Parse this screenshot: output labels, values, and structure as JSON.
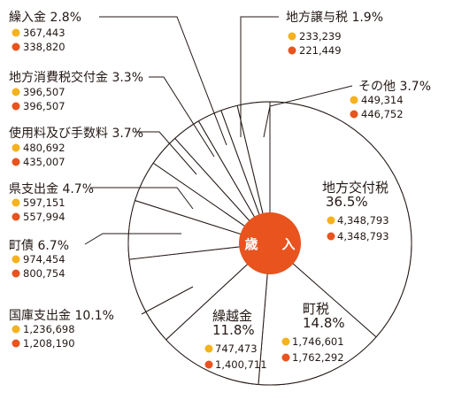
{
  "colors": {
    "current_dot": "#f5b21f",
    "previous_dot": "#e8531e",
    "center": "#e8531e",
    "line": "#231815"
  },
  "chart_data": {
    "type": "pie",
    "title": "",
    "center_label": "歳　入",
    "series_markers": [
      "yellow-dot",
      "orange-dot"
    ],
    "slices": [
      {
        "name": "地方交付税",
        "percent": "36.5%",
        "value_a": "4,348,793",
        "value_b": "4,348,793",
        "pct": 36.5
      },
      {
        "name": "町税",
        "percent": "14.8%",
        "value_a": "1,746,601",
        "value_b": "1,762,292",
        "pct": 14.8
      },
      {
        "name": "繰越金",
        "percent": "11.8%",
        "value_a": "747,473",
        "value_b": "1,400,711",
        "pct": 11.8
      },
      {
        "name": "国庫支出金",
        "percent": "10.1%",
        "value_a": "1,236,698",
        "value_b": "1,208,190",
        "pct": 10.1
      },
      {
        "name": "町債",
        "percent": "6.7%",
        "value_a": "974,454",
        "value_b": "800,754",
        "pct": 6.7
      },
      {
        "name": "県支出金",
        "percent": "4.7%",
        "value_a": "597,151",
        "value_b": "557,994",
        "pct": 4.7
      },
      {
        "name": "使用料及び手数料",
        "percent": "3.7%",
        "value_a": "480,692",
        "value_b": "435,007",
        "pct": 3.7
      },
      {
        "name": "地方消費税交付金",
        "percent": "3.3%",
        "value_a": "396,507",
        "value_b": "396,507",
        "pct": 3.3
      },
      {
        "name": "繰入金",
        "percent": "2.8%",
        "value_a": "367,443",
        "value_b": "338,820",
        "pct": 2.8
      },
      {
        "name": "地方譲与税",
        "percent": "1.9%",
        "value_a": "233,239",
        "value_b": "221,449",
        "pct": 1.9
      },
      {
        "name": "その他",
        "percent": "3.7%",
        "value_a": "449,314",
        "value_b": "446,752",
        "pct": 3.7
      }
    ]
  }
}
